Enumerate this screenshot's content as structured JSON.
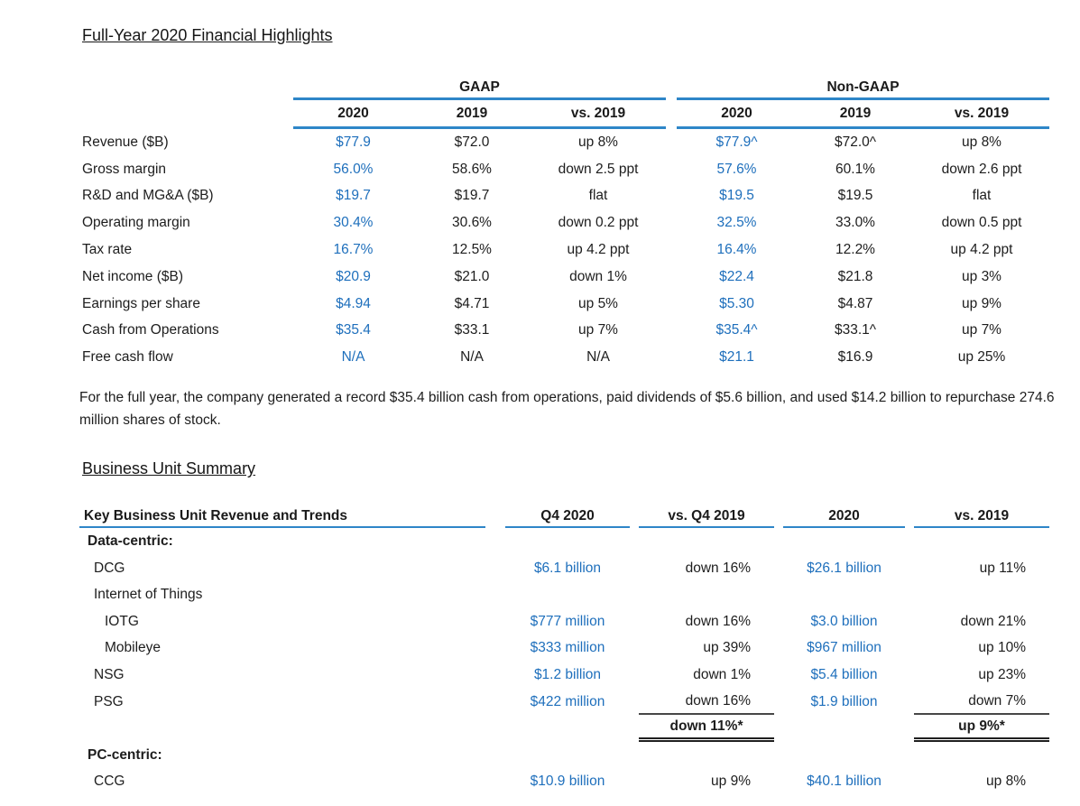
{
  "colors": {
    "value_blue": "#1e6fbc",
    "rule_blue": "#2e86c8",
    "text": "#1d1d1d"
  },
  "highlights": {
    "title": "Full-Year 2020 Financial Highlights",
    "groups": [
      "GAAP",
      "Non-GAAP"
    ],
    "columns": [
      "2020",
      "2019",
      "vs. 2019",
      "2020",
      "2019",
      "vs. 2019"
    ],
    "rows": [
      {
        "label": "Revenue ($B)",
        "c": [
          "$77.9",
          "$72.0",
          "up 8%",
          "$77.9^",
          "$72.0^",
          "up 8%"
        ]
      },
      {
        "label": "Gross margin",
        "c": [
          "56.0%",
          "58.6%",
          "down 2.5 ppt",
          "57.6%",
          "60.1%",
          "down 2.6 ppt"
        ]
      },
      {
        "label": "R&D and MG&A ($B)",
        "c": [
          "$19.7",
          "$19.7",
          "flat",
          "$19.5",
          "$19.5",
          "flat"
        ]
      },
      {
        "label": "Operating margin",
        "c": [
          "30.4%",
          "30.6%",
          "down 0.2 ppt",
          "32.5%",
          "33.0%",
          "down 0.5 ppt"
        ]
      },
      {
        "label": "Tax rate",
        "c": [
          "16.7%",
          "12.5%",
          "up 4.2 ppt",
          "16.4%",
          "12.2%",
          "up 4.2 ppt"
        ]
      },
      {
        "label": "Net income ($B)",
        "c": [
          "$20.9",
          "$21.0",
          "down 1%",
          "$22.4",
          "$21.8",
          "up 3%"
        ]
      },
      {
        "label": "Earnings per share",
        "c": [
          "$4.94",
          "$4.71",
          "up 5%",
          "$5.30",
          "$4.87",
          "up 9%"
        ]
      },
      {
        "label": "Cash from Operations",
        "c": [
          "$35.4",
          "$33.1",
          "up 7%",
          "$35.4^",
          "$33.1^",
          "up 7%"
        ]
      },
      {
        "label": "Free cash flow",
        "c": [
          "N/A",
          "N/A",
          "N/A",
          "$21.1",
          "$16.9",
          "up 25%"
        ]
      }
    ],
    "footnote": "For the full year, the company generated a record $35.4 billion cash from operations, paid dividends of $5.6 billion, and used $14.2 billion to repurchase 274.6 million shares of stock."
  },
  "business": {
    "title": "Business Unit Summary",
    "columns": [
      "Key Business Unit Revenue and Trends",
      "Q4 2020",
      "vs. Q4 2019",
      "2020",
      "vs. 2019"
    ],
    "rows": [
      {
        "label": "Data-centric:",
        "c": [
          "",
          "",
          "",
          ""
        ]
      },
      {
        "label": "DCG",
        "c": [
          "$6.1 billion",
          "down 16%",
          "$26.1 billion",
          "up 11%"
        ]
      },
      {
        "label": "Internet of Things",
        "c": [
          "",
          "",
          "",
          ""
        ]
      },
      {
        "label": "IOTG",
        "c": [
          "$777 million",
          "down 16%",
          "$3.0 billion",
          "down 21%"
        ]
      },
      {
        "label": "Mobileye",
        "c": [
          "$333 million",
          "up 39%",
          "$967 million",
          "up 10%"
        ]
      },
      {
        "label": "NSG",
        "c": [
          "$1.2 billion",
          "down 1%",
          "$5.4 billion",
          "up 23%"
        ]
      },
      {
        "label": "PSG",
        "c": [
          "$422 million",
          "down 16%",
          "$1.9 billion",
          "down 7%"
        ]
      },
      {
        "label": "",
        "c": [
          "",
          "down 11%*",
          "",
          "up 9%*"
        ]
      },
      {
        "label": "PC-centric:",
        "c": [
          "",
          "",
          "",
          ""
        ]
      },
      {
        "label": "CCG",
        "c": [
          "$10.9 billion",
          "up 9%",
          "$40.1 billion",
          "up 8%"
        ]
      }
    ]
  }
}
